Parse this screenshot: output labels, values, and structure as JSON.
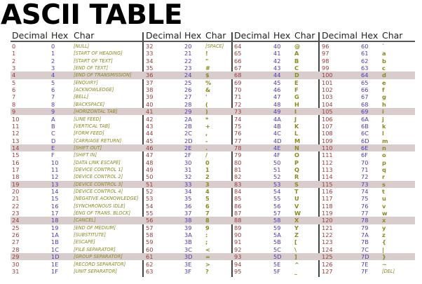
{
  "title": "ASCII TABLE",
  "headers": {
    "decimal": "Decimal",
    "hex": "Hex",
    "char": "Char"
  },
  "colors": {
    "decimal": "#9a3a3a",
    "hex": "#4b3bb5",
    "char": "#8a8a1e",
    "highlight": "#d9cccc"
  },
  "highlighted_rows": [
    4,
    9,
    14,
    19,
    24,
    29
  ],
  "entries": [
    [
      "0",
      "0",
      "[NULL]"
    ],
    [
      "1",
      "1",
      "[START OF HEADING]"
    ],
    [
      "2",
      "2",
      "[START OF TEXT]"
    ],
    [
      "3",
      "3",
      "[END OF TEXT]"
    ],
    [
      "4",
      "4",
      "[END OF TRANSMISSION]"
    ],
    [
      "5",
      "5",
      "[ENQUIRY]"
    ],
    [
      "6",
      "6",
      "[ACKNOWLEDGE]"
    ],
    [
      "7",
      "7",
      "[BELL]"
    ],
    [
      "8",
      "8",
      "[BACKSPACE]"
    ],
    [
      "9",
      "9",
      "[HORIZONTAL TAB]"
    ],
    [
      "10",
      "A",
      "[LINE FEED]"
    ],
    [
      "11",
      "B",
      "[VERTICAL TAB]"
    ],
    [
      "12",
      "C",
      "[FORM FEED]"
    ],
    [
      "13",
      "D",
      "[CARRIAGE RETURN]"
    ],
    [
      "14",
      "E",
      "[SHIFT OUT]"
    ],
    [
      "15",
      "F",
      "[SHIFT IN]"
    ],
    [
      "16",
      "10",
      "[DATA LINK ESCAPE]"
    ],
    [
      "17",
      "11",
      "[DEVICE CONTROL 1]"
    ],
    [
      "18",
      "12",
      "[DEVICE CONTROL 2]"
    ],
    [
      "19",
      "13",
      "[DEVICE CONTROL 3]"
    ],
    [
      "20",
      "14",
      "[DEVICE CONTROL 4]"
    ],
    [
      "21",
      "15",
      "[NEGATIVE ACKNOWLEDGE]"
    ],
    [
      "22",
      "16",
      "[SYNCHRONOUS IDLE]"
    ],
    [
      "23",
      "17",
      "[ENG OF TRANS. BLOCK]"
    ],
    [
      "24",
      "18",
      "[CANCEL]"
    ],
    [
      "25",
      "19",
      "[END OF MEDIUM]"
    ],
    [
      "26",
      "1A",
      "[SUBSTITUTE]"
    ],
    [
      "27",
      "1B",
      "[ESCAPE]"
    ],
    [
      "28",
      "1C",
      "[FILE SEPARATOR]"
    ],
    [
      "29",
      "1D",
      "[GROUP SEPARATOR]"
    ],
    [
      "30",
      "1E",
      "[RECORD SEPARATOR]"
    ],
    [
      "31",
      "1F",
      "[UNIT SEPARATOR]"
    ],
    [
      "32",
      "20",
      "[SPACE]"
    ],
    [
      "33",
      "21",
      "!"
    ],
    [
      "34",
      "22",
      "\""
    ],
    [
      "35",
      "23",
      "#"
    ],
    [
      "36",
      "24",
      "$"
    ],
    [
      "37",
      "25",
      "%"
    ],
    [
      "38",
      "26",
      "&"
    ],
    [
      "39",
      "27",
      "'"
    ],
    [
      "40",
      "28",
      "("
    ],
    [
      "41",
      "29",
      ")"
    ],
    [
      "42",
      "2A",
      "*"
    ],
    [
      "43",
      "2B",
      "+"
    ],
    [
      "44",
      "2C",
      ","
    ],
    [
      "45",
      "2D",
      "-"
    ],
    [
      "46",
      "2E",
      "."
    ],
    [
      "47",
      "2F",
      "/"
    ],
    [
      "48",
      "30",
      "0"
    ],
    [
      "49",
      "31",
      "1"
    ],
    [
      "50",
      "32",
      "2"
    ],
    [
      "51",
      "33",
      "3"
    ],
    [
      "52",
      "34",
      "4"
    ],
    [
      "53",
      "35",
      "5"
    ],
    [
      "54",
      "36",
      "6"
    ],
    [
      "55",
      "37",
      "7"
    ],
    [
      "56",
      "38",
      "8"
    ],
    [
      "57",
      "39",
      "9"
    ],
    [
      "58",
      "3A",
      ":"
    ],
    [
      "59",
      "3B",
      ";"
    ],
    [
      "60",
      "3C",
      "<"
    ],
    [
      "61",
      "3D",
      "="
    ],
    [
      "62",
      "3E",
      ">"
    ],
    [
      "63",
      "3F",
      "?"
    ],
    [
      "64",
      "40",
      "@"
    ],
    [
      "65",
      "41",
      "A"
    ],
    [
      "66",
      "42",
      "B"
    ],
    [
      "67",
      "43",
      "C"
    ],
    [
      "68",
      "44",
      "D"
    ],
    [
      "69",
      "45",
      "E"
    ],
    [
      "70",
      "46",
      "F"
    ],
    [
      "71",
      "47",
      "G"
    ],
    [
      "72",
      "48",
      "H"
    ],
    [
      "73",
      "49",
      "I"
    ],
    [
      "74",
      "4A",
      "J"
    ],
    [
      "75",
      "4B",
      "K"
    ],
    [
      "76",
      "4C",
      "L"
    ],
    [
      "77",
      "4D",
      "M"
    ],
    [
      "78",
      "4E",
      "N"
    ],
    [
      "79",
      "4F",
      "O"
    ],
    [
      "80",
      "50",
      "P"
    ],
    [
      "81",
      "51",
      "Q"
    ],
    [
      "82",
      "52",
      "R"
    ],
    [
      "83",
      "53",
      "S"
    ],
    [
      "84",
      "54",
      "T"
    ],
    [
      "85",
      "55",
      "U"
    ],
    [
      "86",
      "56",
      "V"
    ],
    [
      "87",
      "57",
      "W"
    ],
    [
      "88",
      "58",
      "X"
    ],
    [
      "89",
      "59",
      "Y"
    ],
    [
      "90",
      "5A",
      "Z"
    ],
    [
      "91",
      "5B",
      "["
    ],
    [
      "92",
      "5C",
      "\\"
    ],
    [
      "93",
      "5D",
      "]"
    ],
    [
      "94",
      "5E",
      "^"
    ],
    [
      "95",
      "5F",
      "_"
    ],
    [
      "96",
      "60",
      "`"
    ],
    [
      "97",
      "61",
      "a"
    ],
    [
      "98",
      "62",
      "b"
    ],
    [
      "99",
      "63",
      "c"
    ],
    [
      "100",
      "64",
      "d"
    ],
    [
      "101",
      "65",
      "e"
    ],
    [
      "102",
      "66",
      "f"
    ],
    [
      "103",
      "67",
      "g"
    ],
    [
      "104",
      "68",
      "h"
    ],
    [
      "105",
      "69",
      "i"
    ],
    [
      "106",
      "6A",
      "j"
    ],
    [
      "107",
      "6B",
      "k"
    ],
    [
      "108",
      "6C",
      "l"
    ],
    [
      "109",
      "6D",
      "m"
    ],
    [
      "110",
      "6E",
      "n"
    ],
    [
      "111",
      "6F",
      "o"
    ],
    [
      "112",
      "70",
      "p"
    ],
    [
      "113",
      "71",
      "q"
    ],
    [
      "114",
      "72",
      "r"
    ],
    [
      "115",
      "73",
      "s"
    ],
    [
      "116",
      "74",
      "t"
    ],
    [
      "117",
      "75",
      "u"
    ],
    [
      "118",
      "76",
      "v"
    ],
    [
      "119",
      "77",
      "w"
    ],
    [
      "120",
      "78",
      "x"
    ],
    [
      "121",
      "79",
      "y"
    ],
    [
      "122",
      "7A",
      "z"
    ],
    [
      "123",
      "7B",
      "{"
    ],
    [
      "124",
      "7C",
      "|"
    ],
    [
      "125",
      "7D",
      "}"
    ],
    [
      "126",
      "7E",
      "~"
    ],
    [
      "127",
      "7F",
      "[DEL]"
    ]
  ]
}
